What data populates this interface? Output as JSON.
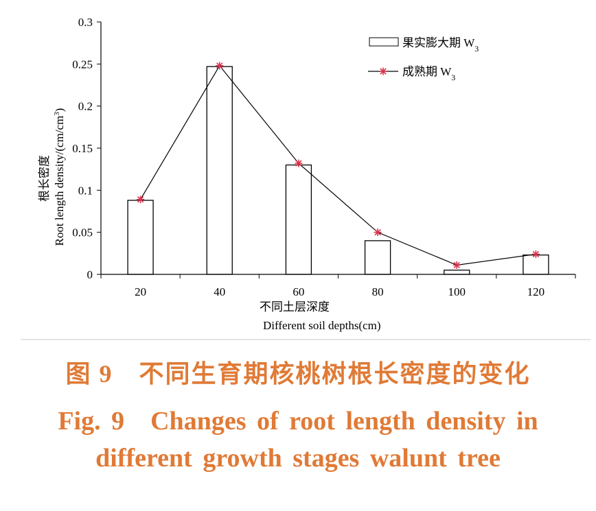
{
  "chart_data": {
    "type": "bar+line",
    "categories": [
      "20",
      "40",
      "60",
      "80",
      "100",
      "120"
    ],
    "series": [
      {
        "name": "果实膨大期 W3",
        "type": "bar",
        "values": [
          0.088,
          0.247,
          0.13,
          0.04,
          0.005,
          0.023
        ]
      },
      {
        "name": "成熟期 W3",
        "type": "line",
        "values": [
          0.089,
          0.248,
          0.132,
          0.05,
          0.011,
          0.024
        ]
      }
    ],
    "ylim": [
      0,
      0.3
    ],
    "yticks": [
      "0",
      "0.05",
      "0.1",
      "0.15",
      "0.2",
      "0.25",
      "0.3"
    ],
    "ylabel": "根长密度 Root length density/(cm/cm3)",
    "ylabel_cn": "根长密度",
    "ylabel_en": "Root length density/(cm/cm",
    "ylabel_sup": "3",
    "ylabel_end": ")",
    "xlabel_cn": "不同土层深度",
    "xlabel_en": "Different soil depths(cm)",
    "legend_position": "top-right",
    "legend": [
      {
        "label": "果实膨大期 W",
        "sub": "3"
      },
      {
        "label": "成熟期 W",
        "sub": "3"
      }
    ],
    "colors": {
      "bar_edge": "#000000",
      "line": "#000000",
      "marker": "#d6334d"
    }
  },
  "caption": {
    "cn": "图 9　不同生育期核桃树根长密度的变化",
    "en_line1": "Fig. 9　Changes of root length density in",
    "en_line2": "different growth stages walunt tree"
  },
  "colors": {
    "caption": "#e07a36"
  }
}
